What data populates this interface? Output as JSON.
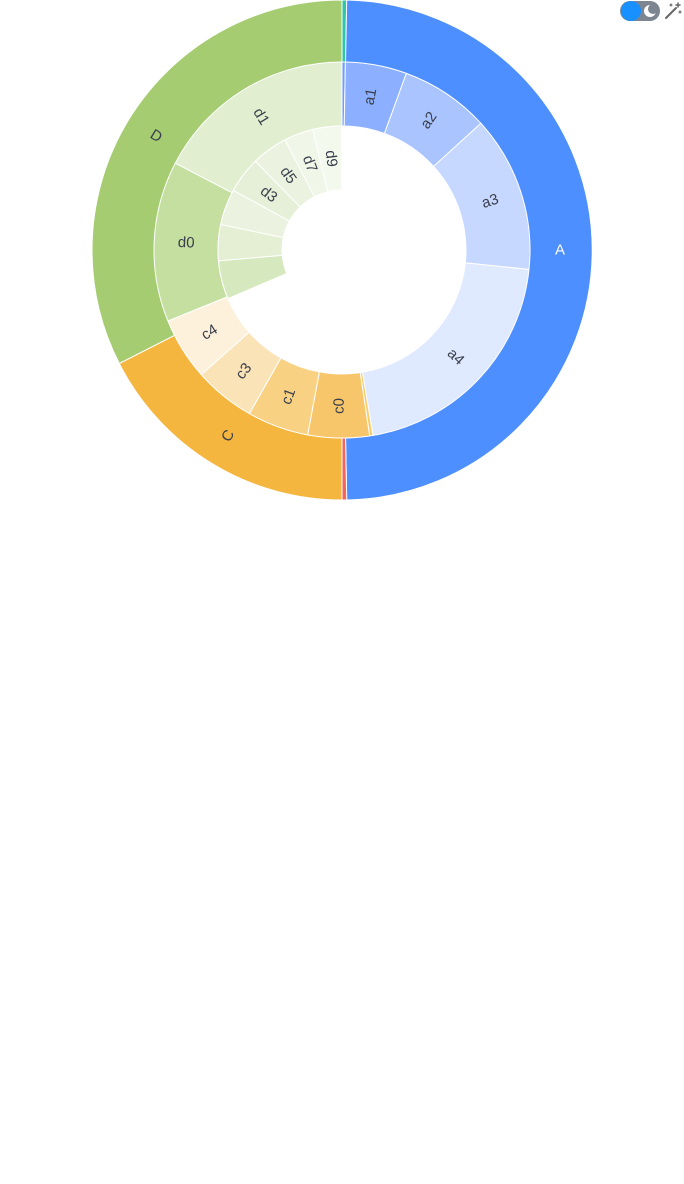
{
  "toolbar": {
    "theme_toggle_icon": "moon-icon",
    "magic_icon": "magic-wand-icon",
    "toggle_color": "#1890ff"
  },
  "chart_data": {
    "type": "sunburst",
    "title": "",
    "rings": [
      {
        "name": "outer",
        "slices": [
          {
            "name": "",
            "label": "",
            "value": 0.3,
            "color": "#2ec7a9"
          },
          {
            "name": "A",
            "label": "A",
            "value": 49.4,
            "color": "#4d8fff",
            "label_color": "#ffffff"
          },
          {
            "name": "",
            "label": "",
            "value": 0.3,
            "color": "#f4665c"
          },
          {
            "name": "C",
            "label": "C",
            "value": 17.5,
            "color": "#f4b63e"
          },
          {
            "name": "D",
            "label": "D",
            "value": 32.5,
            "color": "#a6cc72"
          }
        ]
      },
      {
        "name": "middle",
        "slices": [
          {
            "name": "",
            "label": "",
            "value": 0.3,
            "color": "#6f9cff"
          },
          {
            "name": "a1",
            "label": "a1",
            "value": 5.5,
            "color": "#8cb0ff"
          },
          {
            "name": "a2",
            "label": "a2",
            "value": 8.0,
            "color": "#a9c4ff"
          },
          {
            "name": "a3",
            "label": "a3",
            "value": 14.0,
            "color": "#c6d8ff"
          },
          {
            "name": "a4",
            "label": "a4",
            "value": 21.6,
            "color": "#dfe9ff"
          },
          {
            "name": "",
            "label": "",
            "value": 0.3,
            "color": "#f7ce6e"
          },
          {
            "name": "c0",
            "label": "c0",
            "value": 5.5,
            "color": "#f8c66a"
          },
          {
            "name": "c1",
            "label": "c1",
            "value": 5.5,
            "color": "#f9d183"
          },
          {
            "name": "c3",
            "label": "c3",
            "value": 5.5,
            "color": "#fbe3b8"
          },
          {
            "name": "c4",
            "label": "c4",
            "value": 5.6,
            "color": "#fdf1dc"
          },
          {
            "name": "d0",
            "label": "d0",
            "value": 14.4,
            "color": "#c4df9f"
          },
          {
            "name": "d1",
            "label": "d1",
            "value": 18.1,
            "color": "#e1eed0"
          }
        ]
      },
      {
        "name": "inner",
        "slices": [
          {
            "name": "",
            "label": "",
            "value": 68.6,
            "color": "none"
          },
          {
            "name": "",
            "label": "",
            "value": 5.0,
            "color": "#d6e8be"
          },
          {
            "name": "",
            "label": "",
            "value": 4.7,
            "color": "#e4efd4"
          },
          {
            "name": "",
            "label": "",
            "value": 4.7,
            "color": "#ebf3e0"
          },
          {
            "name": "d3",
            "label": "d3",
            "value": 4.7,
            "color": "#e6f0d8"
          },
          {
            "name": "d5",
            "label": "d5",
            "value": 4.7,
            "color": "#ebf3e0"
          },
          {
            "name": "d7",
            "label": "d7",
            "value": 3.8,
            "color": "#f0f6e8"
          },
          {
            "name": "d9",
            "label": "d9",
            "value": 3.8,
            "color": "#f4f9ee"
          }
        ]
      }
    ]
  }
}
